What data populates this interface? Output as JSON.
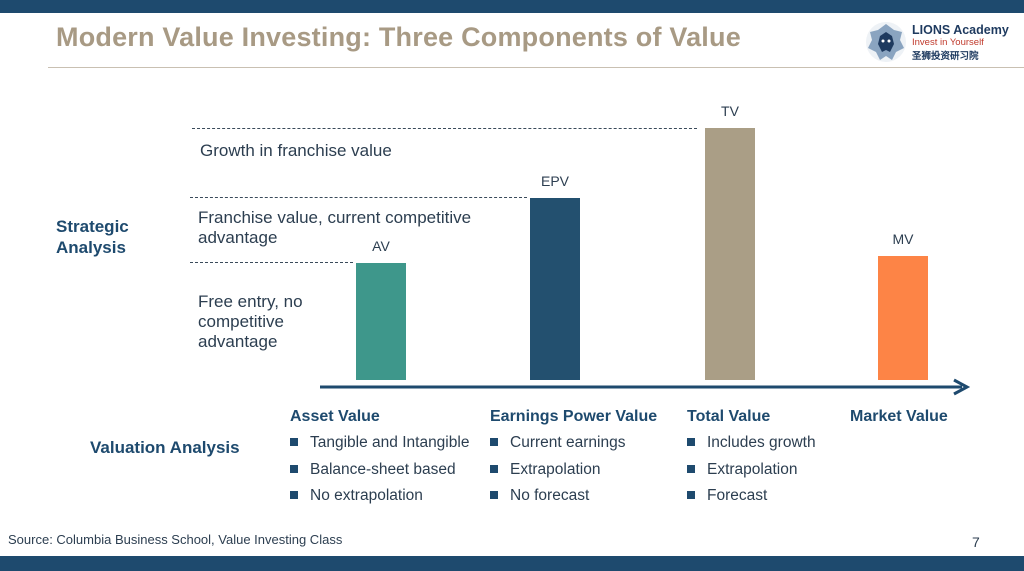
{
  "title": "Modern Value Investing: Three Components of Value",
  "logo": {
    "name": "LIONS Academy",
    "tagline": "Invest in Yourself",
    "chinese": "圣狮投资研习院"
  },
  "strategic_label": [
    "Strategic",
    "Analysis"
  ],
  "layers": {
    "growth": "Growth in franchise value",
    "franchise": [
      "Franchise value, current competitive",
      "advantage"
    ],
    "free_entry": [
      "Free entry, no",
      "competitive",
      "advantage"
    ]
  },
  "chart_data": {
    "type": "bar",
    "categories": [
      "AV",
      "EPV",
      "TV",
      "MV"
    ],
    "values": [
      117,
      182,
      252,
      124
    ],
    "colors": [
      "#3e978b",
      "#23506f",
      "#aa9e86",
      "#fd8446"
    ],
    "note": "unitless schematic bar heights; no printed axis values"
  },
  "valuation_label": "Valuation Analysis",
  "columns": [
    {
      "heading": "Asset Value",
      "items": [
        "Tangible and Intangible",
        "Balance-sheet based",
        "No extrapolation"
      ]
    },
    {
      "heading": "Earnings Power Value",
      "items": [
        "Current earnings",
        "Extrapolation",
        "No forecast"
      ]
    },
    {
      "heading": "Total Value",
      "items": [
        "Includes growth",
        "Extrapolation",
        "Forecast"
      ]
    },
    {
      "heading": "Market Value",
      "items": []
    }
  ],
  "source": "Source: Columbia Business School, Value Investing Class",
  "page_number": "7"
}
